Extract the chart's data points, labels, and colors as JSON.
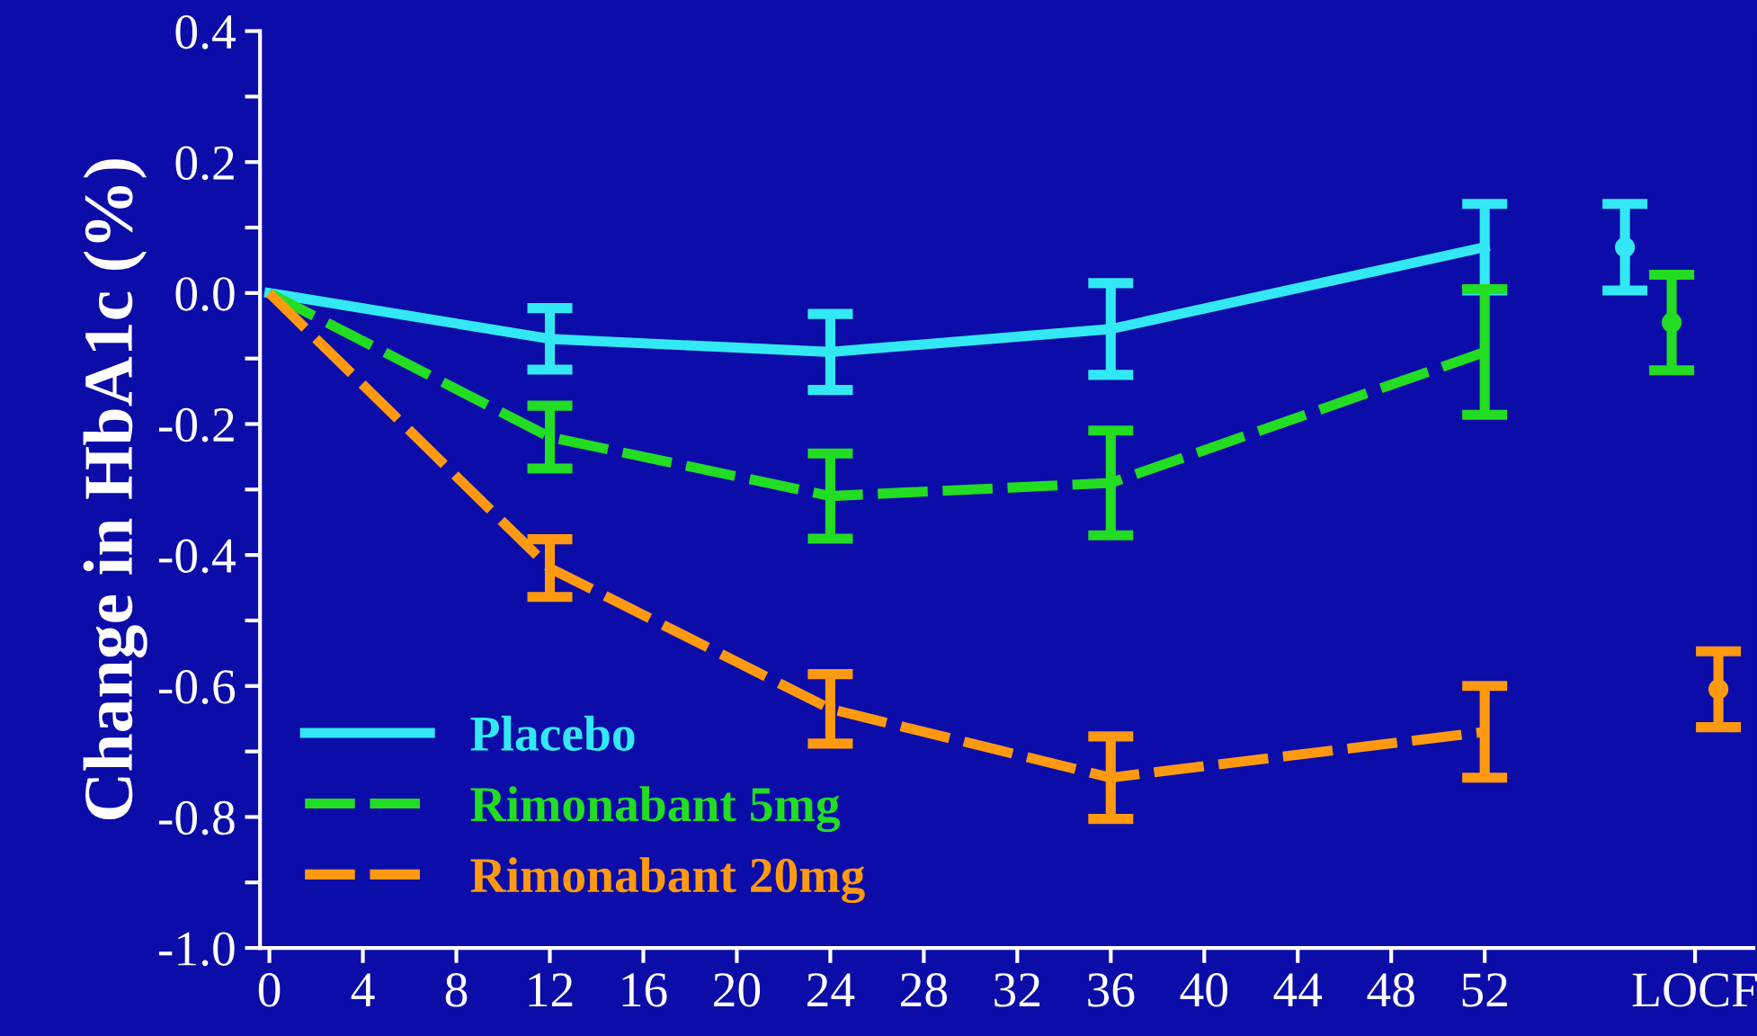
{
  "chart_data": {
    "type": "line",
    "ylabel": "Change in HbA1c (%)",
    "xlim": [
      -0.4,
      63.5
    ],
    "ylim": [
      -1.0,
      0.4
    ],
    "xticks": [
      0,
      4,
      8,
      12,
      16,
      20,
      24,
      28,
      32,
      36,
      40,
      44,
      48,
      52,
      {
        "value": 61,
        "label": "LOCF"
      }
    ],
    "yticks": [
      {
        "value": -1.0,
        "label": "-1.0"
      },
      {
        "value": -0.9,
        "label": null
      },
      {
        "value": -0.8,
        "label": "-0.8"
      },
      {
        "value": -0.7,
        "label": null
      },
      {
        "value": -0.6,
        "label": "-0.6"
      },
      {
        "value": -0.5,
        "label": null
      },
      {
        "value": -0.4,
        "label": "-0.4"
      },
      {
        "value": -0.3,
        "label": null
      },
      {
        "value": -0.2,
        "label": "-0.2"
      },
      {
        "value": -0.1,
        "label": null
      },
      {
        "value": 0.0,
        "label": "0.0"
      },
      {
        "value": 0.1,
        "label": null
      },
      {
        "value": 0.2,
        "label": "0.2"
      },
      {
        "value": 0.3,
        "label": null
      },
      {
        "value": 0.4,
        "label": "0.4"
      }
    ],
    "grid": false,
    "legend": "bottom left",
    "marker": "none",
    "series": [
      {
        "name": "Placebo",
        "color": "#33e8f5",
        "line_style": "solid",
        "x": [
          0,
          12,
          24,
          36,
          52
        ],
        "values": [
          0.0,
          -0.07,
          -0.09,
          -0.055,
          0.07
        ],
        "errors": [
          null,
          0.047,
          0.058,
          0.07,
          0.066
        ]
      },
      {
        "name": "Rimonabant 5mg",
        "color": "#22dd22",
        "line_style": "dashed",
        "x": [
          0,
          12,
          24,
          36,
          52
        ],
        "values": [
          0.0,
          -0.22,
          -0.31,
          -0.29,
          -0.09
        ],
        "errors": [
          null,
          0.048,
          0.065,
          0.08,
          0.096
        ]
      },
      {
        "name": "Rimonabant 20mg",
        "color": "#ff9a10",
        "line_style": "dashed",
        "x": [
          0,
          12,
          24,
          36,
          52
        ],
        "values": [
          0.0,
          -0.42,
          -0.635,
          -0.74,
          -0.67
        ],
        "errors": [
          null,
          0.044,
          0.053,
          0.063,
          0.07
        ]
      },
      {
        "type": "scatter",
        "marker": "circle",
        "color": "#33e8f5",
        "x": [
          58
        ],
        "values": [
          0.07
        ],
        "errors": [
          0.066
        ]
      },
      {
        "type": "scatter",
        "marker": "circle",
        "color": "#22dd22",
        "x": [
          60
        ],
        "values": [
          -0.045
        ],
        "errors": [
          0.073
        ]
      },
      {
        "type": "scatter",
        "marker": "circle",
        "color": "#ff9a10",
        "x": [
          62
        ],
        "values": [
          -0.605
        ],
        "errors": [
          0.058
        ]
      }
    ]
  }
}
